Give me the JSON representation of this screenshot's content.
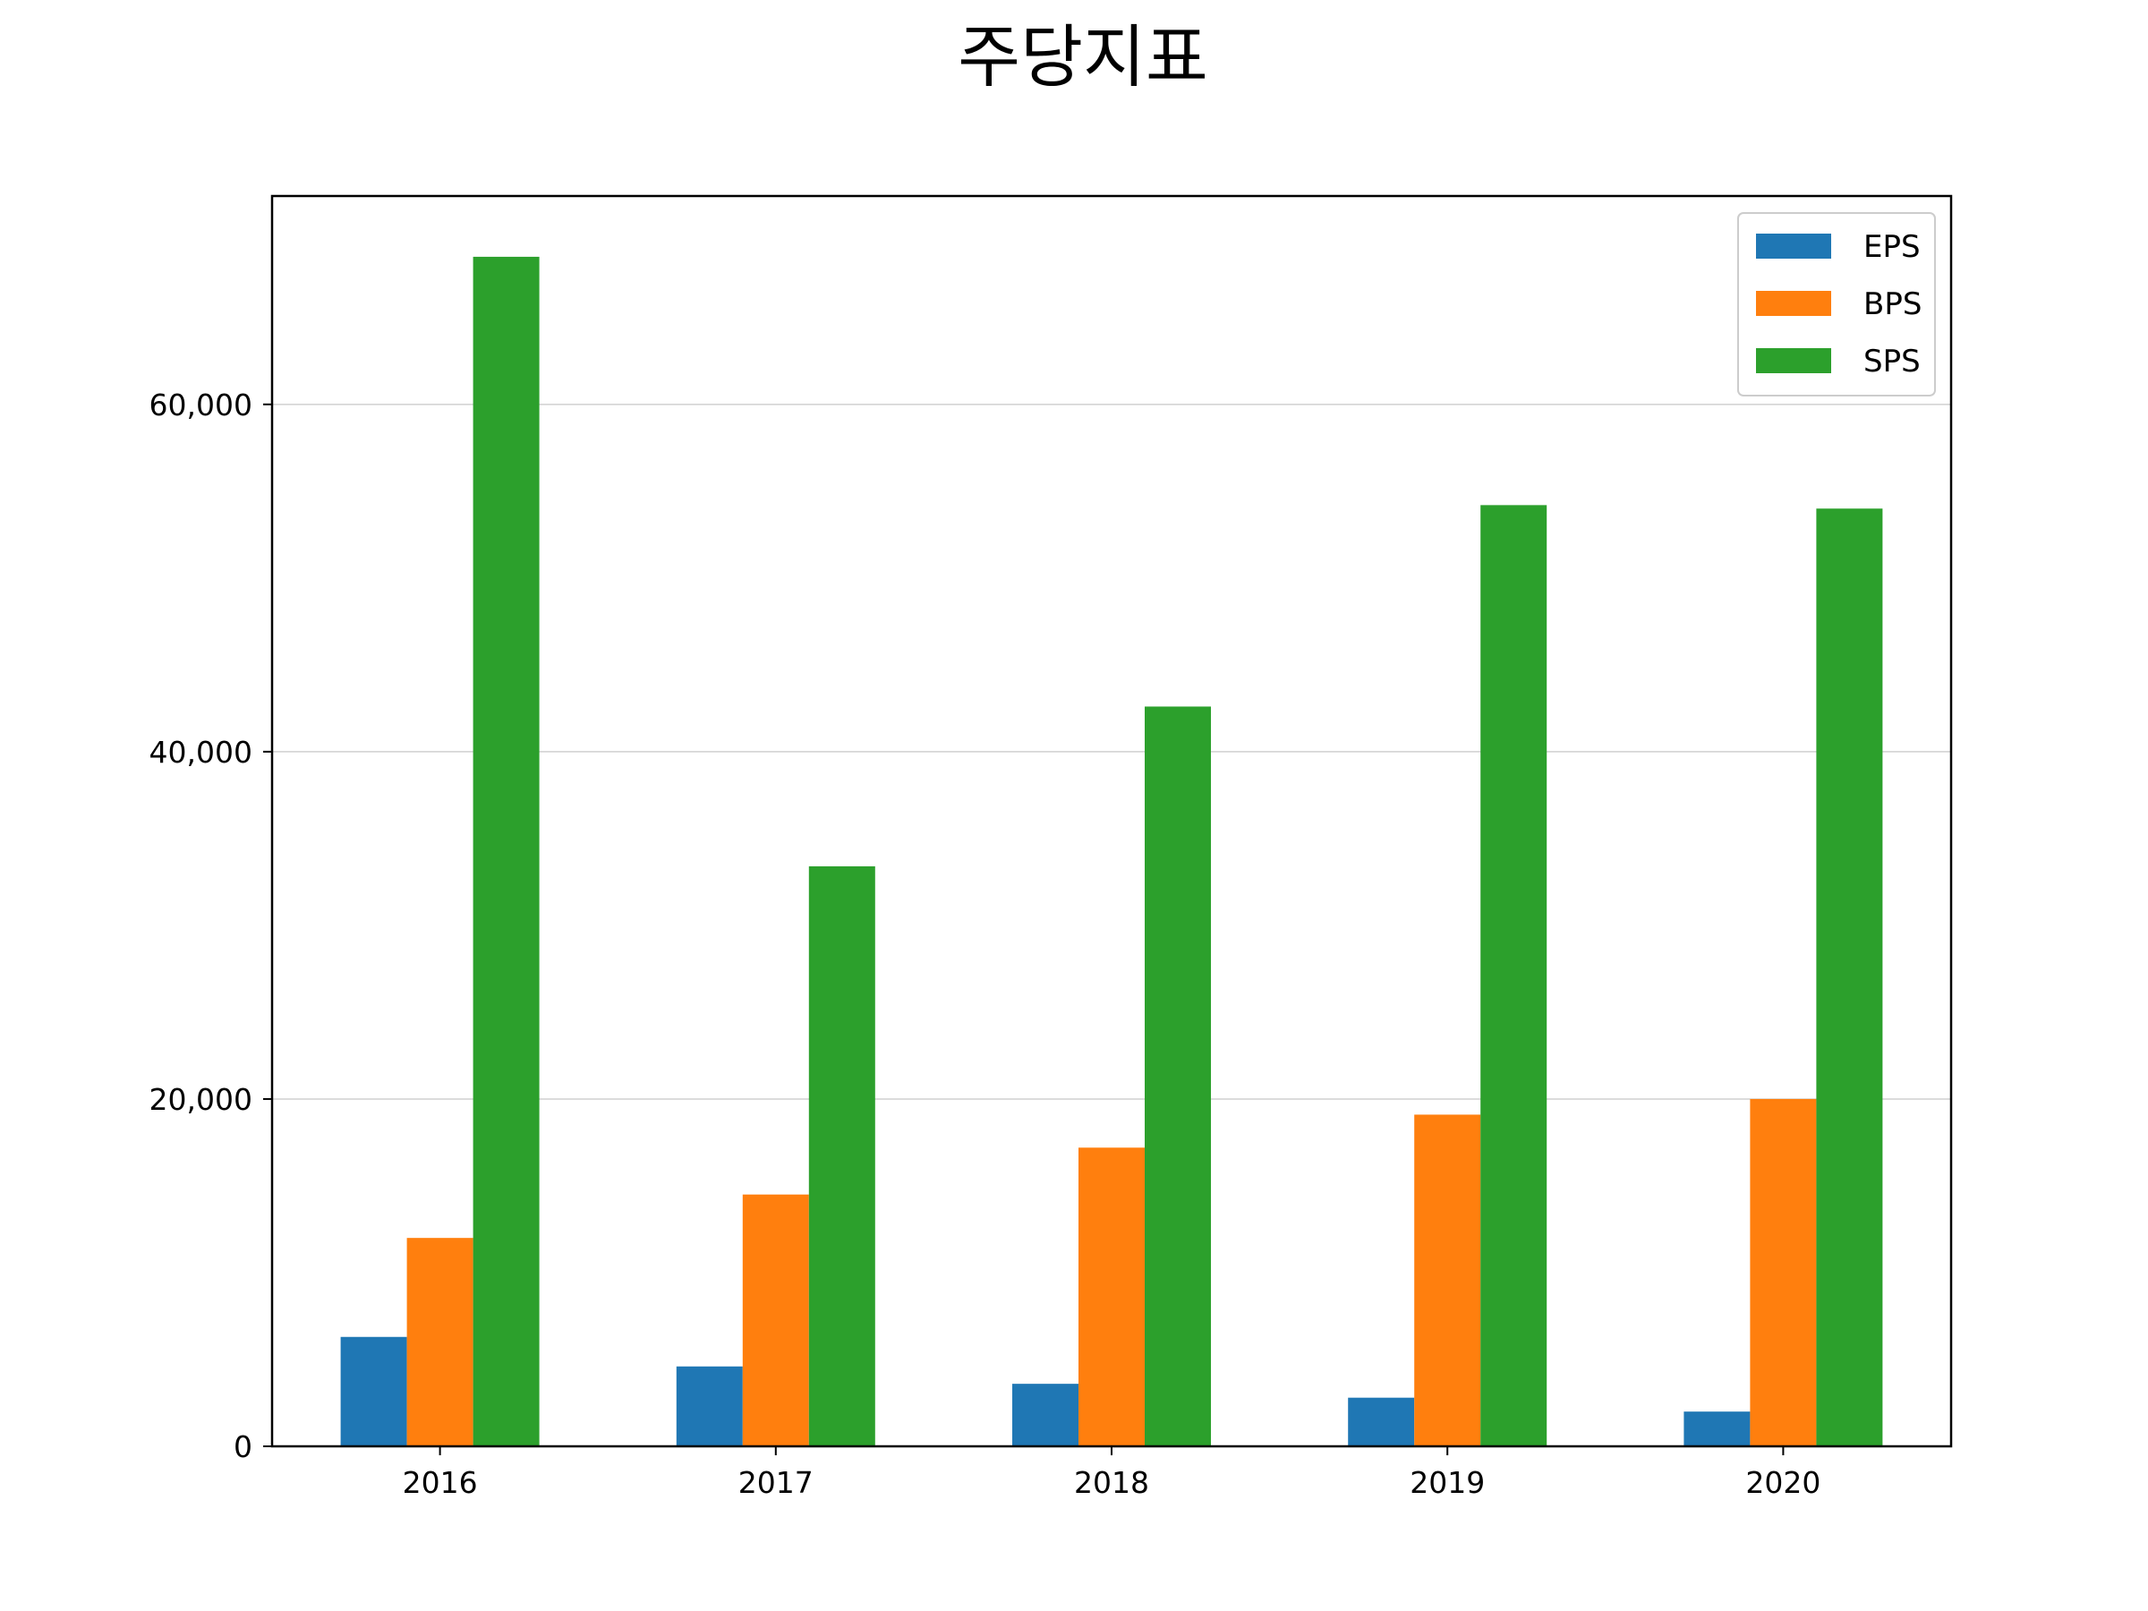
{
  "chart_data": {
    "type": "bar",
    "title": "주당지표",
    "xlabel": "",
    "ylabel": "",
    "categories": [
      "2016",
      "2017",
      "2018",
      "2019",
      "2020"
    ],
    "series": [
      {
        "name": "EPS",
        "color": "#1f77b4",
        "values": [
          6300,
          4600,
          3600,
          2800,
          2000
        ]
      },
      {
        "name": "BPS",
        "color": "#ff7f0e",
        "values": [
          12000,
          14500,
          17200,
          19100,
          20000
        ]
      },
      {
        "name": "SPS",
        "color": "#2ca02c",
        "values": [
          68500,
          33400,
          42600,
          54200,
          54000
        ]
      }
    ],
    "ylim": [
      0,
      72000
    ],
    "yticks": [
      0,
      20000,
      40000,
      60000
    ],
    "ytick_labels": [
      "0",
      "20,000",
      "40,000",
      "60,000"
    ],
    "grid": "horizontal",
    "legend_position": "top-right"
  }
}
